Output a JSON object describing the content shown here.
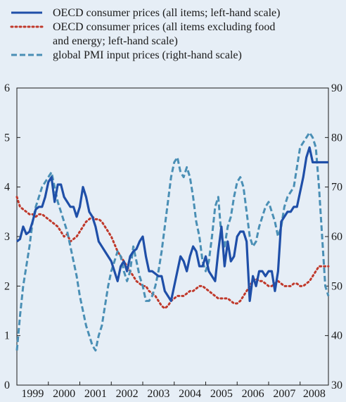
{
  "chart_data": {
    "type": "line",
    "legend": [
      {
        "series": "cpi_all",
        "lines": [
          "OECD consumer prices (all items; left-hand scale)"
        ]
      },
      {
        "series": "cpi_core",
        "lines": [
          "OECD consumer prices (all items excluding food",
          "and energy; left-hand scale)"
        ]
      },
      {
        "series": "pmi",
        "lines": [
          "global PMI input prices (right-hand scale)"
        ]
      }
    ],
    "x_categories": [
      "1999",
      "2000",
      "2001",
      "2002",
      "2003",
      "2004",
      "2005",
      "2006",
      "2007",
      "2008"
    ],
    "xlim": [
      1999.0,
      2008.9
    ],
    "left_axis": {
      "ylim": [
        0,
        6
      ],
      "ticks": [
        0,
        1,
        2,
        3,
        4,
        5,
        6
      ]
    },
    "right_axis": {
      "ylim": [
        30,
        90
      ],
      "ticks": [
        30,
        40,
        50,
        60,
        70,
        80,
        90
      ]
    },
    "grid": false,
    "series": [
      {
        "id": "cpi_all",
        "axis": "left",
        "color": "#1f4fa8",
        "style": "solid",
        "x": [
          1999.0,
          1999.1,
          1999.2,
          1999.3,
          1999.4,
          1999.5,
          1999.6,
          1999.7,
          1999.8,
          1999.9,
          2000.0,
          2000.1,
          2000.2,
          2000.3,
          2000.4,
          2000.5,
          2000.6,
          2000.7,
          2000.8,
          2000.9,
          2001.0,
          2001.1,
          2001.2,
          2001.3,
          2001.4,
          2001.5,
          2001.6,
          2001.7,
          2001.8,
          2001.9,
          2002.0,
          2002.1,
          2002.2,
          2002.3,
          2002.4,
          2002.5,
          2002.6,
          2002.7,
          2002.8,
          2002.9,
          2003.0,
          2003.1,
          2003.2,
          2003.3,
          2003.4,
          2003.5,
          2003.6,
          2003.7,
          2003.8,
          2003.9,
          2004.0,
          2004.1,
          2004.2,
          2004.3,
          2004.4,
          2004.5,
          2004.6,
          2004.7,
          2004.8,
          2004.9,
          2005.0,
          2005.1,
          2005.2,
          2005.3,
          2005.4,
          2005.5,
          2005.6,
          2005.7,
          2005.8,
          2005.9,
          2006.0,
          2006.1,
          2006.2,
          2006.3,
          2006.4,
          2006.5,
          2006.6,
          2006.7,
          2006.8,
          2006.9,
          2007.0,
          2007.1,
          2007.2,
          2007.3,
          2007.4,
          2007.5,
          2007.6,
          2007.7,
          2007.8,
          2007.9,
          2008.0,
          2008.1,
          2008.2,
          2008.3,
          2008.4,
          2008.5,
          2008.6,
          2008.7,
          2008.8,
          2008.9
        ],
        "values": [
          2.9,
          2.95,
          3.2,
          3.05,
          3.1,
          3.3,
          3.55,
          3.6,
          3.6,
          3.8,
          4.1,
          4.2,
          3.7,
          4.05,
          4.05,
          3.8,
          3.7,
          3.6,
          3.6,
          3.4,
          3.6,
          4.0,
          3.8,
          3.5,
          3.4,
          3.2,
          2.9,
          2.8,
          2.7,
          2.6,
          2.5,
          2.3,
          2.1,
          2.4,
          2.5,
          2.3,
          2.6,
          2.7,
          2.75,
          2.9,
          3.0,
          2.6,
          2.3,
          2.3,
          2.25,
          2.2,
          2.2,
          1.9,
          1.8,
          1.7,
          2.0,
          2.3,
          2.6,
          2.5,
          2.3,
          2.6,
          2.8,
          2.7,
          2.4,
          2.4,
          2.6,
          2.3,
          2.2,
          2.1,
          2.7,
          3.2,
          2.4,
          2.9,
          2.5,
          2.6,
          3.0,
          3.1,
          3.1,
          2.9,
          1.7,
          2.2,
          2.0,
          2.3,
          2.3,
          2.2,
          2.3,
          2.3,
          1.9,
          2.3,
          3.3,
          3.4,
          3.5,
          3.5,
          3.6,
          3.6,
          3.9,
          4.2,
          4.6,
          4.8,
          4.5,
          4.5,
          4.5,
          4.5,
          4.5,
          4.5
        ]
      },
      {
        "id": "cpi_core",
        "axis": "left",
        "color": "#c0392b",
        "style": "dotted",
        "x": [
          1999.0,
          1999.1,
          1999.2,
          1999.3,
          1999.4,
          1999.5,
          1999.6,
          1999.7,
          1999.8,
          1999.9,
          2000.0,
          2000.1,
          2000.2,
          2000.3,
          2000.4,
          2000.5,
          2000.6,
          2000.7,
          2000.8,
          2000.9,
          2001.0,
          2001.1,
          2001.2,
          2001.3,
          2001.4,
          2001.5,
          2001.6,
          2001.7,
          2001.8,
          2001.9,
          2002.0,
          2002.1,
          2002.2,
          2002.3,
          2002.4,
          2002.5,
          2002.6,
          2002.7,
          2002.8,
          2002.9,
          2003.0,
          2003.1,
          2003.2,
          2003.3,
          2003.4,
          2003.5,
          2003.6,
          2003.7,
          2003.8,
          2003.9,
          2004.0,
          2004.1,
          2004.2,
          2004.3,
          2004.4,
          2004.5,
          2004.6,
          2004.7,
          2004.8,
          2004.9,
          2005.0,
          2005.1,
          2005.2,
          2005.3,
          2005.4,
          2005.5,
          2005.6,
          2005.7,
          2005.8,
          2005.9,
          2006.0,
          2006.1,
          2006.2,
          2006.3,
          2006.4,
          2006.5,
          2006.6,
          2006.7,
          2006.8,
          2006.9,
          2007.0,
          2007.1,
          2007.2,
          2007.3,
          2007.4,
          2007.5,
          2007.6,
          2007.7,
          2007.8,
          2007.9,
          2008.0,
          2008.1,
          2008.2,
          2008.3,
          2008.4,
          2008.5,
          2008.6,
          2008.7,
          2008.8,
          2008.9
        ],
        "values": [
          3.8,
          3.6,
          3.55,
          3.5,
          3.45,
          3.45,
          3.4,
          3.45,
          3.45,
          3.4,
          3.35,
          3.3,
          3.25,
          3.2,
          3.1,
          3.0,
          3.05,
          2.9,
          2.95,
          3.0,
          3.1,
          3.2,
          3.3,
          3.35,
          3.4,
          3.35,
          3.35,
          3.3,
          3.2,
          3.1,
          3.0,
          2.85,
          2.7,
          2.6,
          2.5,
          2.4,
          2.3,
          2.2,
          2.1,
          2.05,
          2.0,
          2.0,
          1.9,
          1.85,
          1.8,
          1.7,
          1.6,
          1.55,
          1.6,
          1.7,
          1.75,
          1.8,
          1.8,
          1.8,
          1.85,
          1.9,
          1.9,
          1.95,
          2.0,
          2.0,
          1.95,
          1.9,
          1.85,
          1.8,
          1.75,
          1.75,
          1.75,
          1.75,
          1.7,
          1.65,
          1.65,
          1.7,
          1.8,
          1.9,
          2.0,
          2.1,
          2.15,
          2.1,
          2.1,
          2.05,
          2.0,
          2.0,
          2.05,
          2.1,
          2.05,
          2.0,
          2.0,
          2.0,
          2.05,
          2.05,
          2.0,
          2.0,
          2.05,
          2.1,
          2.2,
          2.3,
          2.4,
          2.4,
          2.4,
          2.4
        ]
      },
      {
        "id": "pmi",
        "axis": "right",
        "color": "#4a8fb5",
        "style": "dashed",
        "x": [
          1999.0,
          1999.1,
          1999.2,
          1999.3,
          1999.4,
          1999.5,
          1999.6,
          1999.7,
          1999.8,
          1999.9,
          2000.0,
          2000.1,
          2000.2,
          2000.3,
          2000.4,
          2000.5,
          2000.6,
          2000.7,
          2000.8,
          2000.9,
          2001.0,
          2001.1,
          2001.2,
          2001.3,
          2001.4,
          2001.5,
          2001.6,
          2001.7,
          2001.8,
          2001.9,
          2002.0,
          2002.1,
          2002.2,
          2002.3,
          2002.4,
          2002.5,
          2002.6,
          2002.7,
          2002.8,
          2002.9,
          2003.0,
          2003.1,
          2003.2,
          2003.3,
          2003.4,
          2003.5,
          2003.6,
          2003.7,
          2003.8,
          2003.9,
          2004.0,
          2004.1,
          2004.2,
          2004.3,
          2004.4,
          2004.5,
          2004.6,
          2004.7,
          2004.8,
          2004.9,
          2005.0,
          2005.1,
          2005.2,
          2005.3,
          2005.4,
          2005.5,
          2005.6,
          2005.7,
          2005.8,
          2005.9,
          2006.0,
          2006.1,
          2006.2,
          2006.3,
          2006.4,
          2006.5,
          2006.6,
          2006.7,
          2006.8,
          2006.9,
          2007.0,
          2007.1,
          2007.2,
          2007.3,
          2007.4,
          2007.5,
          2007.6,
          2007.7,
          2007.8,
          2007.9,
          2008.0,
          2008.1,
          2008.2,
          2008.3,
          2008.4,
          2008.5,
          2008.6,
          2008.7,
          2008.8,
          2008.9
        ],
        "values": [
          37,
          44,
          50,
          54,
          58,
          63,
          66,
          68,
          70,
          71,
          72,
          73,
          70,
          67,
          65,
          63,
          61,
          58,
          55,
          52,
          48,
          45,
          42,
          40,
          38,
          37,
          40,
          42,
          46,
          50,
          53,
          55,
          57,
          56,
          53,
          51,
          53,
          58,
          55,
          52,
          50,
          47,
          47,
          48,
          50,
          53,
          57,
          62,
          67,
          72,
          75,
          76,
          73,
          72,
          74,
          72,
          68,
          63,
          60,
          55,
          53,
          55,
          60,
          66,
          68,
          60,
          58,
          62,
          64,
          68,
          71,
          72,
          70,
          65,
          60,
          58,
          59,
          62,
          64,
          66,
          67,
          65,
          63,
          60,
          62,
          66,
          68,
          69,
          70,
          74,
          78,
          79,
          80,
          81,
          80,
          78,
          70,
          60,
          50,
          48
        ]
      }
    ]
  }
}
